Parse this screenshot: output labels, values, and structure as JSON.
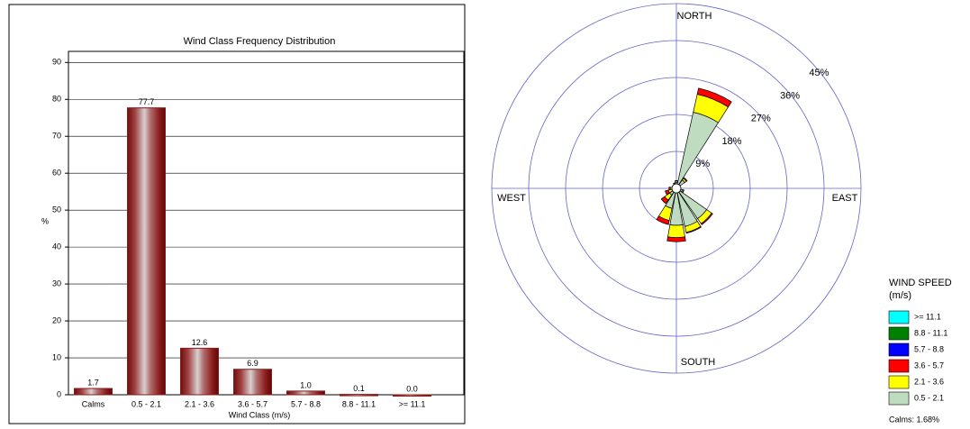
{
  "chart_data": [
    {
      "type": "bar",
      "title": "Wind Class Frequency Distribution",
      "y_label": "%",
      "x_label": "Wind Class (m/s)",
      "categories": [
        "Calms",
        "0.5 - 2.1",
        "2.1 - 3.6",
        "3.6 - 5.7",
        "5.7 - 8.8",
        "8.8 - 11.1",
        ">= 11.1"
      ],
      "values": [
        1.7,
        77.7,
        12.6,
        6.9,
        1.0,
        0.1,
        0.0
      ],
      "value_labels": [
        "1.7",
        "77.7",
        "12.6",
        "6.9",
        "1.0",
        "0.1",
        "0.0"
      ],
      "color": "#8b1a1a",
      "ylim": [
        0,
        93
      ],
      "yticks": [
        0,
        10,
        20,
        30,
        40,
        50,
        60,
        70,
        80,
        90
      ],
      "grid": true
    },
    {
      "type": "windrose",
      "direction_labels": [
        "NORTH",
        "EAST",
        "SOUTH",
        "WEST"
      ],
      "categories": [
        null,
        null,
        null,
        null,
        null,
        null,
        null,
        null,
        null,
        null,
        null,
        null,
        null,
        null,
        null,
        null
      ],
      "rlim": [
        0,
        45
      ],
      "rticks": [
        {
          "value": 9,
          "label": "9%"
        },
        {
          "value": 18,
          "label": "18%"
        },
        {
          "value": 27,
          "label": "27%"
        },
        {
          "value": 36,
          "label": "36%"
        },
        {
          "value": 45,
          "label": "45%"
        }
      ],
      "legend_title": "WIND SPEED",
      "legend_subtitle": "(m/s)",
      "calms_label": "Calms: 1.68%",
      "series": [
        {
          "name": ">= 11.1",
          "color": "#00ffff",
          "values": [
            0,
            0,
            0,
            0,
            0,
            0,
            0,
            0,
            0,
            0,
            0,
            0,
            0,
            0,
            0,
            0
          ]
        },
        {
          "name": "8.8 - 11.1",
          "color": "#008000",
          "values": [
            0,
            0,
            0,
            0,
            0,
            0,
            0,
            0,
            0,
            0,
            0,
            0,
            0,
            0,
            0,
            0
          ]
        },
        {
          "name": "5.7 - 8.8",
          "color": "#0000ff",
          "values": [
            0,
            0,
            0,
            0,
            0,
            0,
            0,
            0,
            0,
            0,
            0,
            0,
            0,
            0,
            0,
            0
          ]
        },
        {
          "name": "3.6 - 5.7",
          "color": "#ff0000",
          "values": [
            0.1,
            1.5,
            0.2,
            0,
            0,
            0.1,
            0.3,
            0.2,
            1,
            1,
            1,
            0.8,
            0.3,
            0.1,
            0.1,
            0.1
          ]
        },
        {
          "name": "2.1 - 3.6",
          "color": "#ffff00",
          "values": [
            0.3,
            4.5,
            0.5,
            0,
            0,
            0.3,
            1.5,
            1.5,
            3,
            3,
            1.5,
            1,
            0.5,
            0.3,
            0.2,
            0.3
          ]
        },
        {
          "name": "0.5 - 2.1",
          "color": "#c0dcc0",
          "values": [
            1.5,
            19,
            2.5,
            0.5,
            0.5,
            1.5,
            9,
            9.5,
            9,
            5,
            2,
            1,
            1,
            0.5,
            0.5,
            1
          ]
        }
      ]
    }
  ]
}
